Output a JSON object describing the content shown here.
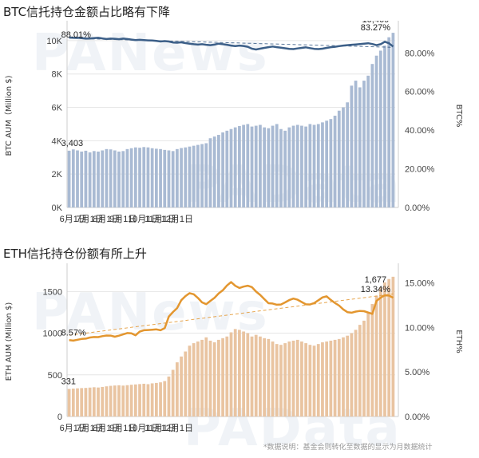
{
  "watermarks": [
    "PANews",
    "PAData",
    "PANews",
    "PAData"
  ],
  "footnote": "*数据说明：基金会则转化至数据的显示为月数据统计",
  "chart_data": [
    {
      "type": "bar",
      "title": "BTC信托持仓金额占比略有下降",
      "ylabel": "BTC AUM（Million $)",
      "y2label": "BTC%",
      "ylim": [
        0,
        11000
      ],
      "y2lim": [
        0,
        0.95
      ],
      "yticks": [
        0,
        2000,
        4000,
        6000,
        8000,
        10000
      ],
      "yticklabels": [
        "0K",
        "2K",
        "4K",
        "6K",
        "8K",
        "10K"
      ],
      "y2ticks": [
        0,
        0.2,
        0.4,
        0.6,
        0.8
      ],
      "y2ticklabels": [
        "0.00%",
        "20.00%",
        "40.00%",
        "60.00%",
        "80.00%"
      ],
      "xticks": [
        1,
        5,
        9,
        13,
        18,
        22,
        26
      ],
      "xticklabels": [
        "6月1日",
        "7月1日",
        "8月1日",
        "9月1日",
        "10月1日",
        "11月1日",
        "12月1日"
      ],
      "bar_color": "#a9bad3",
      "line_color": "#3c5f88",
      "values": [
        3403,
        3480,
        3420,
        3350,
        3400,
        3300,
        3380,
        3350,
        3420,
        3500,
        3480,
        3420,
        3350,
        3380,
        3500,
        3550,
        3600,
        3580,
        3620,
        3600,
        3550,
        3520,
        3500,
        3450,
        3420,
        3380,
        3500,
        3560,
        3600,
        3650,
        3700,
        3750,
        3800,
        3850,
        4150,
        4250,
        4350,
        4500,
        4600,
        4700,
        4800,
        4880,
        4950,
        5000,
        4850,
        4900,
        4950,
        4800,
        4750,
        4900,
        5000,
        4700,
        4600,
        4800,
        4900,
        4950,
        4900,
        4850,
        5000,
        4950,
        5000,
        5100,
        5200,
        5300,
        5500,
        5800,
        6000,
        6300,
        7300,
        7600,
        7200,
        7600,
        7900,
        8600,
        9100,
        9400,
        9700,
        10200,
        10469
      ],
      "line_values": [
        0.8801,
        0.878,
        0.879,
        0.877,
        0.874,
        0.875,
        0.877,
        0.878,
        0.875,
        0.872,
        0.874,
        0.873,
        0.871,
        0.874,
        0.872,
        0.869,
        0.866,
        0.868,
        0.866,
        0.865,
        0.864,
        0.862,
        0.859,
        0.861,
        0.859,
        0.854,
        0.853,
        0.855,
        0.851,
        0.848,
        0.845,
        0.843,
        0.845,
        0.842,
        0.84,
        0.843,
        0.848,
        0.845,
        0.842,
        0.838,
        0.835,
        0.838,
        0.836,
        0.832,
        0.822,
        0.818,
        0.822,
        0.826,
        0.83,
        0.833,
        0.83,
        0.827,
        0.824,
        0.821,
        0.82,
        0.823,
        0.826,
        0.829,
        0.825,
        0.821,
        0.82,
        0.822,
        0.826,
        0.83,
        0.832,
        0.835,
        0.838,
        0.84,
        0.842,
        0.844,
        0.846,
        0.848,
        0.85,
        0.846,
        0.84,
        0.845,
        0.858,
        0.85,
        0.8327
      ],
      "trend": [
        0.876,
        0.829
      ],
      "labels": {
        "bar_first": "3,403",
        "bar_last": "10,469",
        "line_first": "88.01%",
        "line_last": "83.27%"
      }
    },
    {
      "type": "bar",
      "title": "ETH信托持仓份额有所上升",
      "ylabel": "ETH AUM (Million $)",
      "y2label": "ETH%",
      "ylim": [
        0,
        1800
      ],
      "y2lim": [
        0,
        0.1684
      ],
      "yticks": [
        0,
        500,
        1000,
        1500
      ],
      "yticklabels": [
        "0",
        "500",
        "1000",
        "1500"
      ],
      "y2ticks": [
        0,
        0.05,
        0.1,
        0.15
      ],
      "y2ticklabels": [
        "0.00%",
        "5.00%",
        "10.00%",
        "15.00%"
      ],
      "xticks": [
        1,
        5,
        9,
        13,
        18,
        22,
        26
      ],
      "xticklabels": [
        "6月1日",
        "7月1日",
        "8月1日",
        "9月1日",
        "10月1日",
        "11月1日",
        "12月1日"
      ],
      "bar_color": "#e9c4a1",
      "line_color": "#e3962f",
      "values": [
        331,
        335,
        338,
        341,
        343,
        347,
        351,
        348,
        355,
        362,
        368,
        372,
        375,
        371,
        376,
        381,
        385,
        389,
        393,
        388,
        398,
        403,
        410,
        425,
        480,
        560,
        650,
        720,
        780,
        850,
        880,
        900,
        920,
        950,
        910,
        890,
        920,
        940,
        960,
        1010,
        1050,
        1040,
        1020,
        1000,
        960,
        980,
        960,
        940,
        930,
        900,
        870,
        860,
        880,
        900,
        910,
        920,
        900,
        880,
        860,
        850,
        870,
        890,
        900,
        910,
        920,
        930,
        950,
        970,
        1000,
        1040,
        1100,
        1150,
        1250,
        1350,
        1450,
        1550,
        1610,
        1650,
        1677
      ],
      "line_values": [
        0.0857,
        0.0852,
        0.0862,
        0.0871,
        0.0874,
        0.0887,
        0.0892,
        0.0891,
        0.0902,
        0.0909,
        0.0908,
        0.0896,
        0.0907,
        0.0922,
        0.0937,
        0.0934,
        0.0912,
        0.0953,
        0.0968,
        0.0971,
        0.0975,
        0.0978,
        0.0968,
        0.0992,
        0.1122,
        0.1173,
        0.1217,
        0.1306,
        0.1352,
        0.1385,
        0.1372,
        0.1331,
        0.1281,
        0.1261,
        0.1298,
        0.1333,
        0.1381,
        0.1417,
        0.1471,
        0.1509,
        0.1467,
        0.1443,
        0.1458,
        0.1468,
        0.1453,
        0.1403,
        0.1365,
        0.1318,
        0.1272,
        0.1268,
        0.1255,
        0.1258,
        0.1281,
        0.1307,
        0.1324,
        0.1311,
        0.1285,
        0.1259,
        0.1258,
        0.1274,
        0.1305,
        0.1337,
        0.1349,
        0.1309,
        0.1275,
        0.1245,
        0.1202,
        0.1172,
        0.1165,
        0.1178,
        0.1185,
        0.1182,
        0.1167,
        0.1152,
        0.1298,
        0.1334,
        0.1361,
        0.1358,
        0.1334
      ],
      "trend": [
        0.0912,
        0.1376
      ],
      "labels": {
        "bar_first": "331",
        "bar_last": "1,677",
        "line_first": "8.57%",
        "line_last": "13.34%"
      }
    }
  ]
}
